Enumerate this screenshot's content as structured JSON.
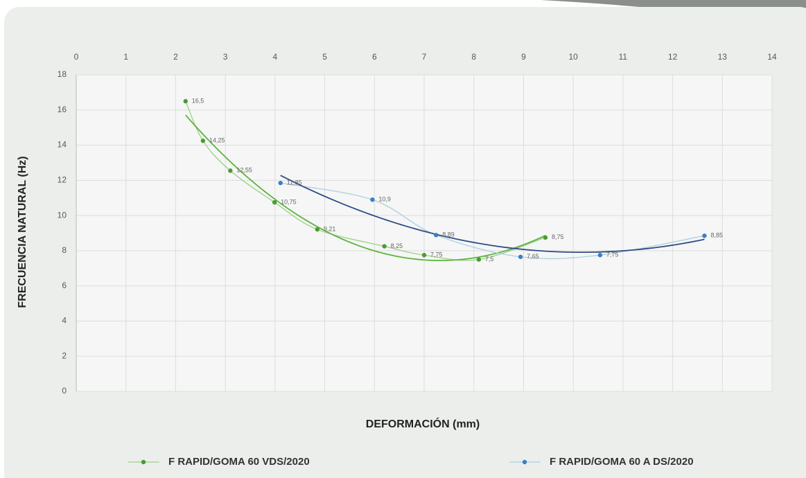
{
  "chart_data": {
    "type": "scatter",
    "x_label": "DEFORMACIÓN (mm)",
    "y_label": "FRECUENCIA NATURAL (Hz)",
    "xlim": [
      0,
      14
    ],
    "xticks": [
      0,
      1,
      2,
      3,
      4,
      5,
      6,
      7,
      8,
      9,
      10,
      11,
      12,
      13,
      14
    ],
    "x_axis_position": "top",
    "ylim": [
      0,
      18
    ],
    "yticks": [
      0,
      2,
      4,
      6,
      8,
      10,
      12,
      14,
      16,
      18
    ],
    "grid": true,
    "legend": "bottom",
    "series": [
      {
        "name": "F RAPID/GOMA 60 VDS/2020",
        "color": "#4c9a35",
        "line_color": "#9ccf88",
        "trendline": "polynomial",
        "trendline_color": "#5cb33e",
        "x": [
          2.2,
          2.55,
          3.1,
          3.99,
          4.85,
          6.2,
          7.0,
          8.1,
          9.44
        ],
        "values": [
          16.5,
          14.25,
          12.55,
          10.75,
          9.21,
          8.25,
          7.75,
          7.5,
          8.75
        ],
        "value_labels": [
          "16,5",
          "14,25",
          "12,55",
          "10,75",
          "9,21",
          "8,25",
          "7,75",
          "7,5",
          "8,75"
        ]
      },
      {
        "name": "F RAPID/GOMA 60 A DS/2020",
        "color": "#3b7fc4",
        "line_color": "#a9cfe3",
        "trendline": "polynomial",
        "trendline_color": "#2e4c86",
        "x": [
          4.11,
          5.96,
          7.24,
          8.94,
          10.54,
          12.64
        ],
        "values": [
          11.85,
          10.9,
          8.89,
          7.65,
          7.75,
          8.85
        ],
        "value_labels": [
          "11,85",
          "10,9",
          "8,89",
          "7,65",
          "7,75",
          "8,85"
        ]
      }
    ]
  }
}
